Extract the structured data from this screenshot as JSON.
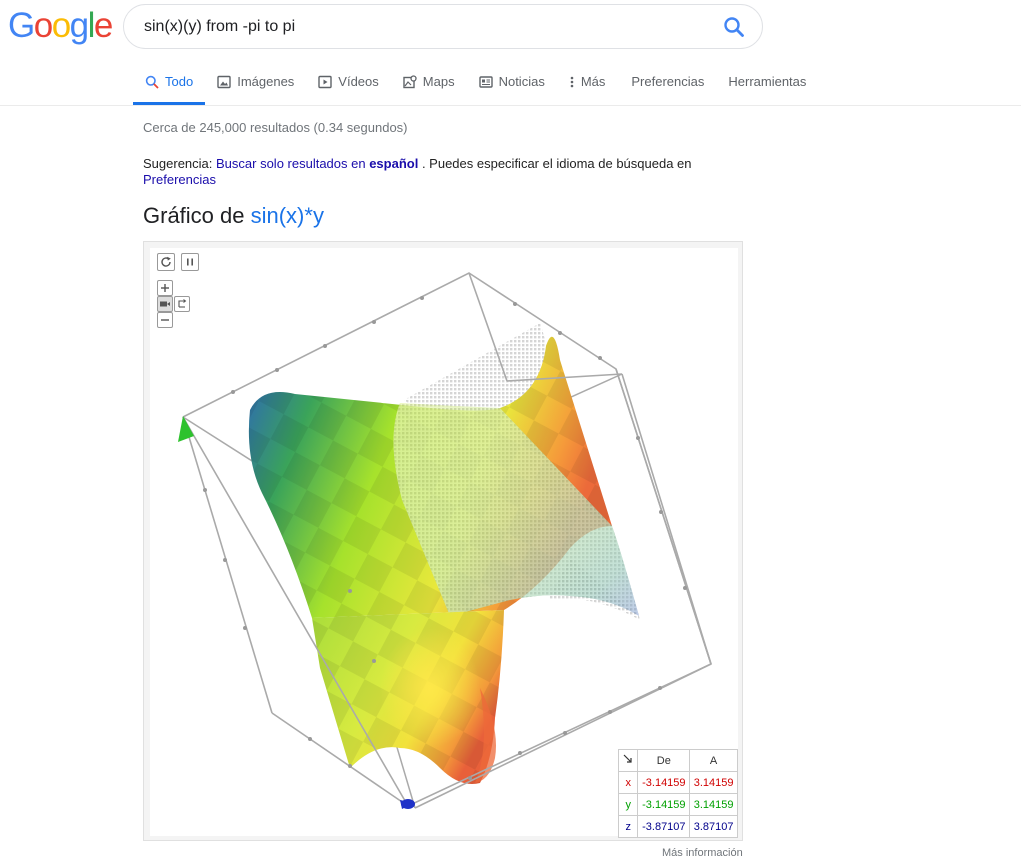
{
  "logo": {
    "letters": [
      "G",
      "o",
      "o",
      "g",
      "l",
      "e"
    ],
    "colors": [
      "#4285F4",
      "#EA4335",
      "#FBBC05",
      "#4285F4",
      "#34A853",
      "#EA4335"
    ]
  },
  "search": {
    "query": "sin(x)(y) from -pi to pi"
  },
  "tabs": [
    {
      "label": "Todo",
      "icon": "search-icon"
    },
    {
      "label": "Imágenes",
      "icon": "image-icon"
    },
    {
      "label": "Vídeos",
      "icon": "video-icon"
    },
    {
      "label": "Maps",
      "icon": "map-icon"
    },
    {
      "label": "Noticias",
      "icon": "news-icon"
    },
    {
      "label": "Más",
      "icon": "more-vert-icon"
    },
    {
      "label": "Preferencias"
    },
    {
      "label": "Herramientas"
    }
  ],
  "results": {
    "stats": "Cerca de 245,000 resultados (0.34 segundos)",
    "suggestion_prefix": "Sugerencia: ",
    "suggestion_link": "Buscar solo resultados en ",
    "suggestion_lang": "español",
    "suggestion_mid": " . Puedes especificar el idioma de búsqueda en ",
    "suggestion_prefs": "Preferencias"
  },
  "graph": {
    "title_prefix": "Gráfico de ",
    "function": "sin(x)*y",
    "table": {
      "header_from": "De",
      "header_to": "A",
      "rows": [
        {
          "var": "x",
          "from": "-3.14159",
          "to": "3.14159",
          "color": "#d00000"
        },
        {
          "var": "y",
          "from": "-3.14159",
          "to": "3.14159",
          "color": "#00a000"
        },
        {
          "var": "z",
          "from": "-3.87107",
          "to": "3.87107",
          "color": "#00008b"
        }
      ]
    }
  },
  "footer": {
    "more_info": "Más información"
  }
}
